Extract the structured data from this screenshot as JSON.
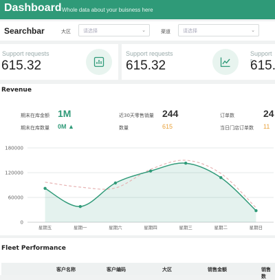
{
  "header": {
    "title": "Dashboard",
    "subtitle": "Whole data about your buisness here"
  },
  "searchbar": {
    "label": "Searchbar",
    "fields": [
      {
        "label": "大区",
        "placeholder": "请选择"
      },
      {
        "label": "渠道",
        "placeholder": "请选择"
      }
    ]
  },
  "cards": [
    {
      "label": "Support requests",
      "value": "615.32",
      "icon": "bar-chart-icon"
    },
    {
      "label": "Support requests",
      "value": "615.32",
      "icon": "line-chart-icon"
    },
    {
      "label": "Support r",
      "value": "615."
    }
  ],
  "revenue": {
    "title": "Revenue",
    "stats": [
      {
        "label": "期末在库金额",
        "value": "1M",
        "color": "#2f9a78"
      },
      {
        "label": "期末在库数量",
        "value": "0M ▲",
        "color": "#2f9a78"
      },
      {
        "label": "近30天零售销量",
        "value": "244",
        "color": "#333333"
      },
      {
        "label": "数量",
        "value": "615",
        "color": "#e9a23b"
      },
      {
        "label": "订单数",
        "value": "24",
        "color": "#333333"
      },
      {
        "label": "当日门店订单数",
        "value": "11",
        "color": "#e9a23b"
      }
    ]
  },
  "chart_data": {
    "type": "line",
    "categories": [
      "星期五",
      "星期一",
      "星期六",
      "星期四",
      "星期三",
      "星期二",
      "星期日"
    ],
    "series": [
      {
        "values": [
          82000,
          38000,
          95000,
          124000,
          143000,
          108000,
          28000
        ],
        "style": "solid",
        "area": true,
        "color": "#2f9a78"
      },
      {
        "values": [
          97000,
          85000,
          83000,
          128000,
          150000,
          118000,
          35000
        ],
        "style": "dashed",
        "color": "#e7b3b3"
      }
    ],
    "yticks": [
      "0",
      "60000",
      "120000",
      "180000"
    ],
    "ylim": [
      0,
      180000
    ],
    "grid": true
  },
  "fleet": {
    "title": "Fleet Performance",
    "columns": [
      "客户名称",
      "客户编码",
      "大区",
      "销售金额",
      "销售数"
    ]
  },
  "colors": {
    "brand": "#2f9a78",
    "accent": "#e9a23b"
  }
}
